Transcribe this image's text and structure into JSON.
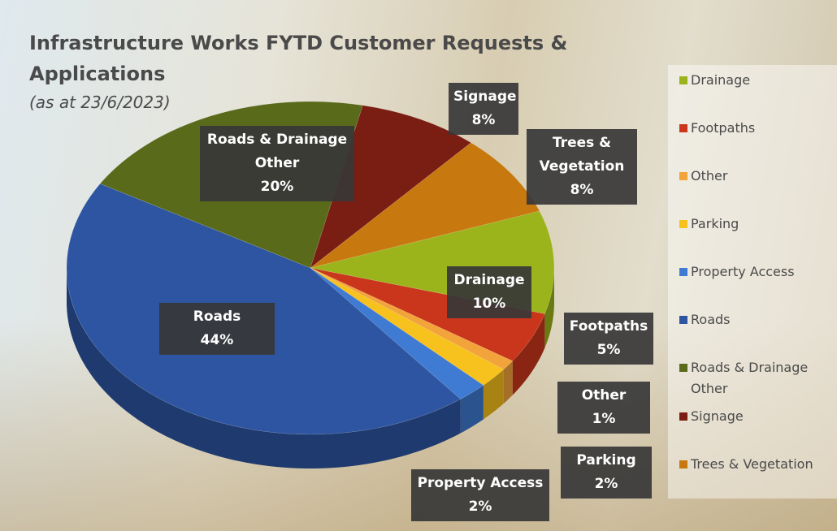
{
  "chart_data": {
    "type": "pie",
    "title": "Infrastructure Works FYTD Customer Requests & Applications",
    "subtitle": "(as at 23/6/2023)",
    "categories": [
      "Drainage",
      "Footpaths",
      "Other",
      "Parking",
      "Property Access",
      "Roads",
      "Roads & Drainage Other",
      "Signage",
      "Trees & Vegetation"
    ],
    "values": [
      10,
      5,
      1,
      2,
      2,
      44,
      20,
      8,
      8
    ],
    "value_labels": [
      "10%",
      "5%",
      "1%",
      "2%",
      "2%",
      "44%",
      "20%",
      "8%",
      "8%"
    ],
    "colors": [
      "#9cb41c",
      "#c9361b",
      "#f2a33a",
      "#f7c11e",
      "#3f7bd3",
      "#2d55a2",
      "#5a6a1b",
      "#7a1d13",
      "#c7790f"
    ],
    "legend": "right"
  }
}
